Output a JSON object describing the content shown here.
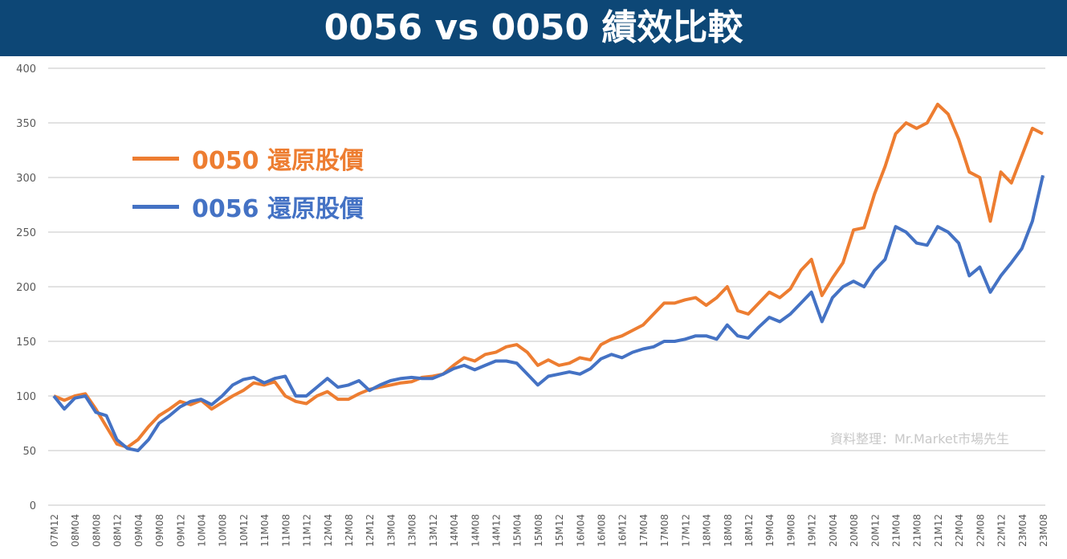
{
  "title": "0056 vs 0050 績效比較",
  "watermark": "資料整理：Mr.Market市場先生",
  "chart_data": {
    "type": "line",
    "title": "0056 vs 0050 績效比較",
    "ylim": [
      0,
      400
    ],
    "yticks": [
      0,
      50,
      100,
      150,
      200,
      250,
      300,
      350,
      400
    ],
    "grid": true,
    "legend_position": "top-left",
    "x_start": "07M12",
    "x_end": "23M08",
    "x_step_months": 2,
    "xtick_labels": [
      "07M12",
      "08M04",
      "08M08",
      "08M12",
      "09M04",
      "09M08",
      "09M12",
      "10M04",
      "10M08",
      "10M12",
      "11M04",
      "11M08",
      "11M12",
      "12M04",
      "12M08",
      "12M12",
      "13M04",
      "13M08",
      "13M12",
      "14M04",
      "14M08",
      "14M12",
      "15M04",
      "15M08",
      "15M12",
      "16M04",
      "16M08",
      "16M12",
      "17M04",
      "17M08",
      "17M12",
      "18M04",
      "18M08",
      "18M12",
      "19M04",
      "19M08",
      "19M12",
      "20M04",
      "20M08",
      "20M12",
      "21M04",
      "21M08",
      "21M12",
      "22M04",
      "22M08",
      "22M12",
      "23M04",
      "23M08"
    ],
    "series": [
      {
        "name": "0050 還原股價",
        "color": "#ed7d31",
        "values": [
          100,
          96,
          100,
          102,
          88,
          72,
          56,
          53,
          60,
          72,
          82,
          88,
          95,
          92,
          96,
          88,
          94,
          100,
          105,
          112,
          110,
          113,
          100,
          95,
          93,
          100,
          104,
          97,
          97,
          102,
          106,
          108,
          110,
          112,
          113,
          117,
          118,
          120,
          128,
          135,
          132,
          138,
          140,
          145,
          147,
          140,
          128,
          133,
          128,
          130,
          135,
          133,
          147,
          152,
          155,
          160,
          165,
          175,
          185,
          185,
          188,
          190,
          183,
          190,
          200,
          178,
          175,
          185,
          195,
          190,
          198,
          215,
          225,
          192,
          208,
          222,
          252,
          254,
          285,
          310,
          340,
          350,
          345,
          350,
          367,
          358,
          335,
          305,
          300,
          260,
          305,
          295,
          320,
          345,
          340
        ]
      },
      {
        "name": "0056 還原股價",
        "color": "#4472c4",
        "values": [
          100,
          88,
          98,
          100,
          85,
          82,
          60,
          52,
          50,
          60,
          75,
          82,
          90,
          95,
          97,
          92,
          100,
          110,
          115,
          117,
          112,
          116,
          118,
          100,
          100,
          108,
          116,
          108,
          110,
          114,
          105,
          110,
          114,
          116,
          117,
          116,
          116,
          120,
          125,
          128,
          124,
          128,
          132,
          132,
          130,
          120,
          110,
          118,
          120,
          122,
          120,
          125,
          134,
          138,
          135,
          140,
          143,
          145,
          150,
          150,
          152,
          155,
          155,
          152,
          165,
          155,
          153,
          163,
          172,
          168,
          175,
          185,
          195,
          168,
          190,
          200,
          205,
          200,
          215,
          225,
          255,
          250,
          240,
          238,
          255,
          250,
          240,
          210,
          218,
          195,
          210,
          222,
          235,
          260,
          302
        ]
      }
    ]
  }
}
